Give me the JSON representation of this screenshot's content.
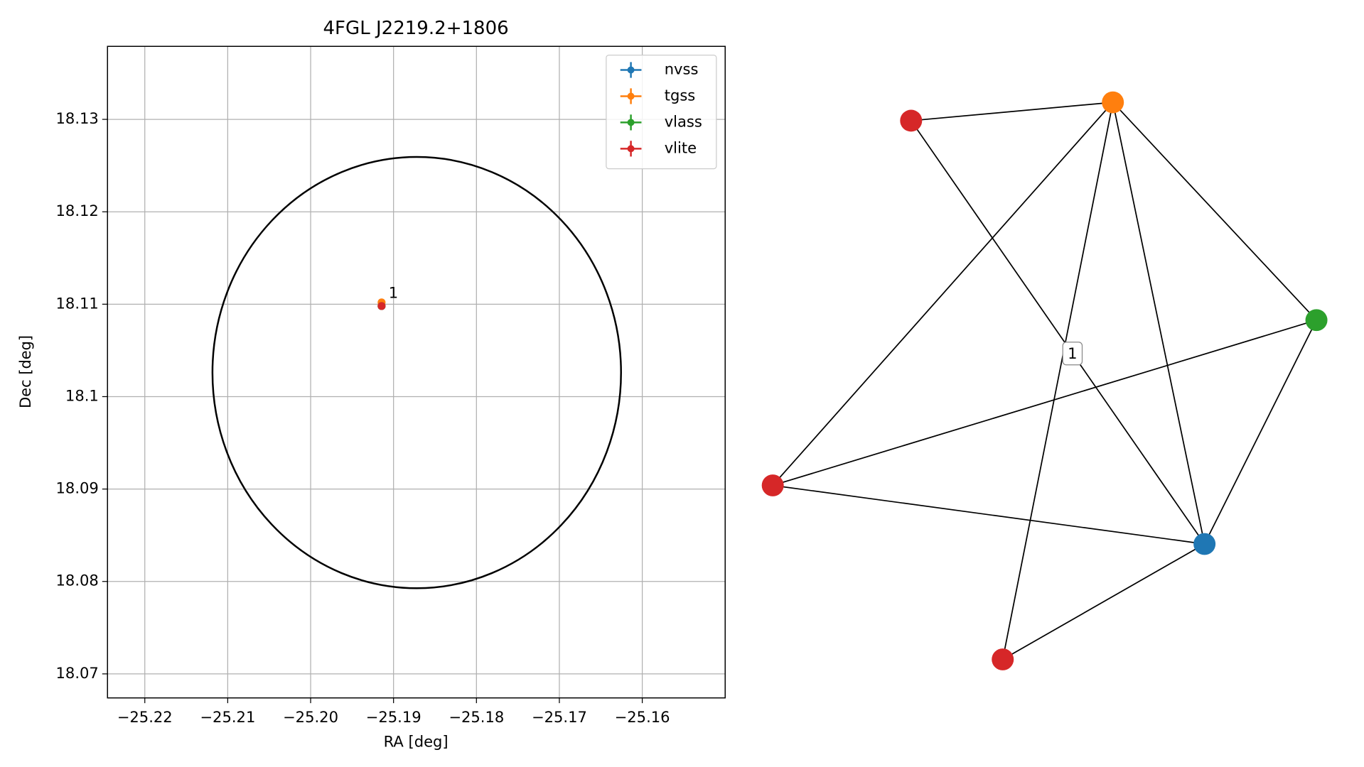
{
  "chart_data": [
    {
      "type": "scatter",
      "title": "4FGL J2219.2+1806",
      "xlabel": "RA [deg]",
      "ylabel": "Dec [deg]",
      "xlim": [
        -25.2245,
        -25.15
      ],
      "ylim": [
        18.0674,
        18.1379
      ],
      "xticks": [
        {
          "value": -25.22,
          "label": "−25.22"
        },
        {
          "value": -25.21,
          "label": "−25.21"
        },
        {
          "value": -25.2,
          "label": "−25.20"
        },
        {
          "value": -25.19,
          "label": "−25.19"
        },
        {
          "value": -25.18,
          "label": "−25.18"
        },
        {
          "value": -25.17,
          "label": "−25.17"
        },
        {
          "value": -25.16,
          "label": "−25.16"
        }
      ],
      "yticks": [
        18.07,
        18.08,
        18.09,
        18.1,
        18.11,
        18.12,
        18.13
      ],
      "grid": true,
      "legend": "upper right",
      "ellipse": {
        "center_x": -25.1872,
        "center_y": 18.1026,
        "radius_x": 0.02464,
        "radius_y": 0.02333,
        "color": "#000000"
      },
      "series": [
        {
          "name": "nvss",
          "color": "#1f77b4",
          "x": [
            -25.19144
          ],
          "values": [
            18.1098
          ],
          "xerr": [
            0.0002
          ],
          "yerr": [
            0.0002
          ]
        },
        {
          "name": "tgss",
          "color": "#ff7f0e",
          "x": [
            -25.19144
          ],
          "values": [
            18.1102
          ],
          "xerr": [
            0.0002
          ],
          "yerr": [
            0.0003
          ]
        },
        {
          "name": "vlass",
          "color": "#2ca02c",
          "x": [
            -25.19144
          ],
          "values": [
            18.1098
          ],
          "xerr": [
            0.0002
          ],
          "yerr": [
            0.0002
          ]
        },
        {
          "name": "vlite",
          "color": "#d62728",
          "x": [
            -25.19144
          ],
          "values": [
            18.1098
          ],
          "xerr": [
            0.0002
          ],
          "yerr": [
            0.0002
          ],
          "labels": [
            "1"
          ]
        }
      ]
    },
    {
      "type": "network",
      "nodes": [
        {
          "color": "#d62728"
        },
        {
          "color": "#ff7f0e"
        },
        {
          "color": "#2ca02c"
        },
        {
          "color": "#d62728"
        },
        {
          "color": "#1f77b4"
        },
        {
          "color": "#d62728"
        }
      ],
      "edges": [
        {
          "source": 0,
          "target": 1
        },
        {
          "source": 0,
          "target": 4,
          "label": "1"
        },
        {
          "source": 1,
          "target": 3
        },
        {
          "source": 1,
          "target": 5
        },
        {
          "source": 1,
          "target": 4
        },
        {
          "source": 1,
          "target": 2
        },
        {
          "source": 2,
          "target": 3
        },
        {
          "source": 2,
          "target": 4
        },
        {
          "source": 3,
          "target": 4
        },
        {
          "source": 4,
          "target": 5
        }
      ]
    }
  ]
}
